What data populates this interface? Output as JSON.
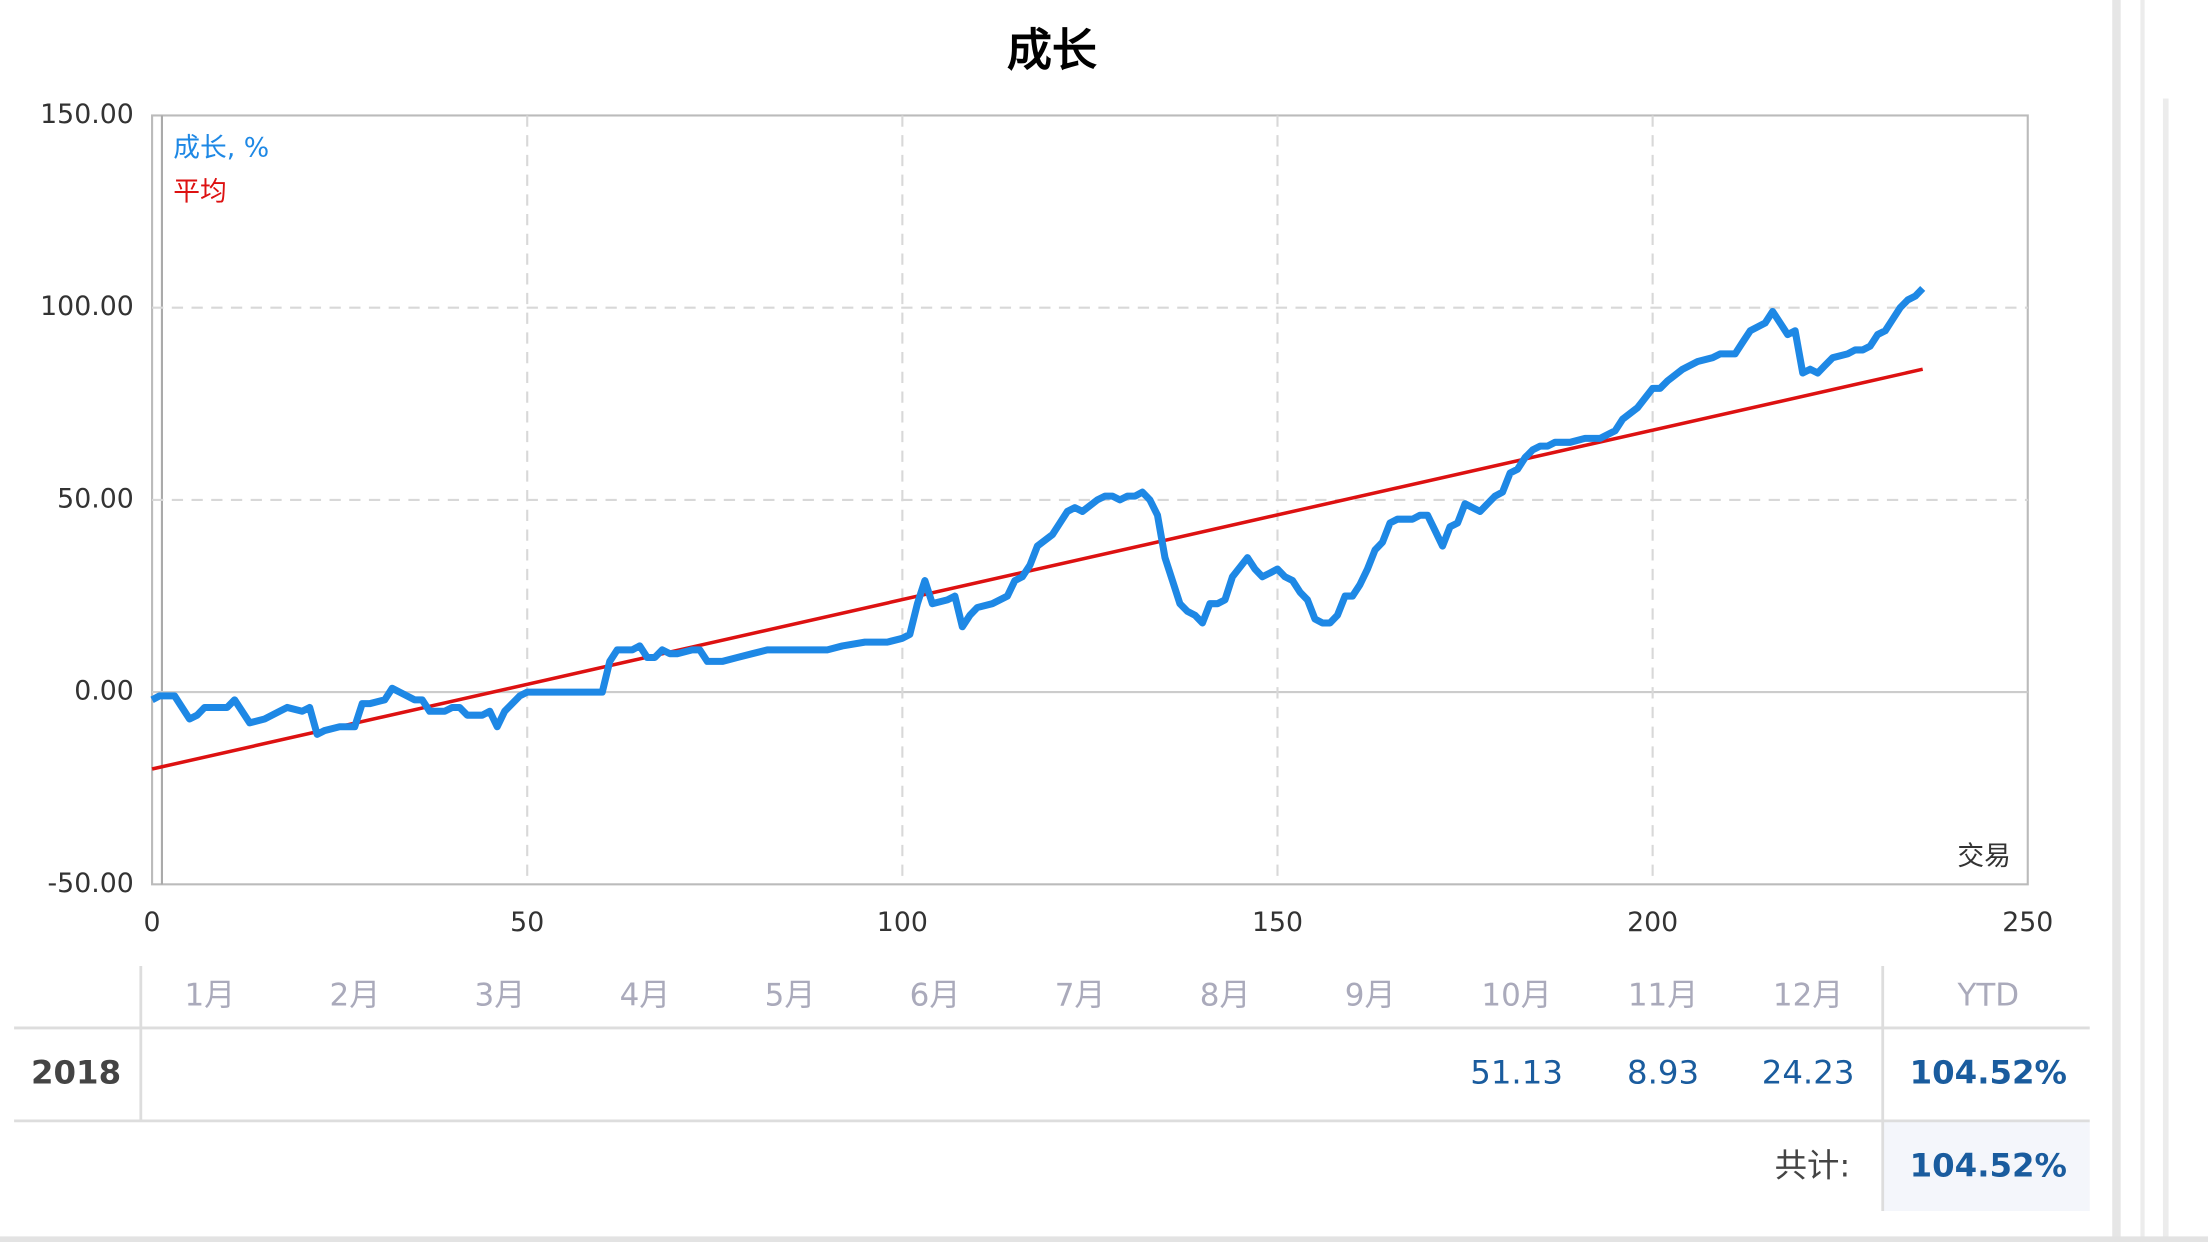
{
  "chart_data": {
    "type": "line",
    "title": "成长",
    "x_label": "交易",
    "xlim": [
      0,
      250
    ],
    "xticks": [
      0,
      50,
      100,
      150,
      200,
      250
    ],
    "ylim": [
      -50,
      150
    ],
    "yticks": [
      {
        "value": -50,
        "label": "-50.00"
      },
      {
        "value": 0,
        "label": "0.00"
      },
      {
        "value": 50,
        "label": "50.00"
      },
      {
        "value": 100,
        "label": "100.00"
      },
      {
        "value": 150,
        "label": "150.00"
      }
    ],
    "grid": true,
    "legend": "upper left",
    "series": [
      {
        "name": "成长, %",
        "color": "#1e88e5",
        "x": [
          0,
          1,
          3,
          5,
          6,
          7,
          9,
          10,
          11,
          13,
          15,
          17,
          18,
          20,
          21,
          22,
          23,
          25,
          26,
          27,
          28,
          29,
          31,
          32,
          33,
          35,
          36,
          37,
          39,
          40,
          41,
          42,
          44,
          45,
          46,
          47,
          49,
          50,
          60,
          61,
          62,
          64,
          65,
          66,
          67,
          68,
          69,
          70,
          72,
          73,
          74,
          76,
          78,
          80,
          82,
          90,
          92,
          95,
          98,
          100,
          101,
          102,
          103,
          104,
          106,
          107,
          108,
          109,
          110,
          112,
          114,
          115,
          116,
          117,
          118,
          120,
          121,
          122,
          123,
          124,
          126,
          127,
          128,
          129,
          130,
          131,
          132,
          133,
          134,
          135,
          136,
          137,
          138,
          139,
          140,
          141,
          142,
          143,
          144,
          146,
          147,
          148,
          149,
          150,
          151,
          152,
          153,
          154,
          155,
          156,
          157,
          158,
          159,
          160,
          161,
          162,
          163,
          164,
          165,
          166,
          168,
          169,
          170,
          171,
          172,
          173,
          174,
          175,
          176,
          177,
          178,
          179,
          180,
          181,
          182,
          183,
          184,
          185,
          186,
          187,
          189,
          191,
          193,
          195,
          196,
          198,
          200,
          201,
          202,
          204,
          206,
          208,
          209,
          211,
          212,
          213,
          215,
          216,
          217,
          218,
          219,
          220,
          221,
          222,
          223,
          224,
          226,
          227,
          228,
          229,
          230,
          231,
          232,
          233,
          234,
          235,
          236
        ],
        "values": [
          -2,
          -1,
          -1,
          -7,
          -6,
          -4,
          -4,
          -4,
          -2,
          -8,
          -7,
          -5,
          -4,
          -5,
          -4,
          -11,
          -10,
          -9,
          -9,
          -9,
          -3,
          -3,
          -2,
          1,
          0,
          -2,
          -2,
          -5,
          -5,
          -4,
          -4,
          -6,
          -6,
          -5,
          -9,
          -5,
          -1,
          0,
          0,
          8,
          11,
          11,
          12,
          9,
          9,
          11,
          10,
          10,
          11,
          11,
          8,
          8,
          9,
          10,
          11,
          11,
          12,
          13,
          13,
          14,
          15,
          23,
          29,
          23,
          24,
          25,
          17,
          20,
          22,
          23,
          25,
          29,
          30,
          33,
          38,
          41,
          44,
          47,
          48,
          47,
          50,
          51,
          51,
          50,
          51,
          51,
          52,
          50,
          46,
          35,
          29,
          23,
          21,
          20,
          18,
          23,
          23,
          24,
          30,
          35,
          32,
          30,
          31,
          32,
          30,
          29,
          26,
          24,
          19,
          18,
          18,
          20,
          25,
          25,
          28,
          32,
          37,
          39,
          44,
          45,
          45,
          46,
          46,
          42,
          38,
          43,
          44,
          49,
          48,
          47,
          49,
          51,
          52,
          57,
          58,
          61,
          63,
          64,
          64,
          65,
          65,
          66,
          66,
          68,
          71,
          74,
          79,
          79,
          81,
          84,
          86,
          87,
          88,
          88,
          91,
          94,
          96,
          99,
          96,
          93,
          94,
          83,
          84,
          83,
          85,
          87,
          88,
          89,
          89,
          90,
          93,
          94,
          97,
          100,
          102,
          103,
          105
        ]
      },
      {
        "name": "平均",
        "color": "#dd1111",
        "x": [
          0,
          236
        ],
        "values": [
          -20,
          84
        ]
      }
    ]
  },
  "table": {
    "columns": [
      "1月",
      "2月",
      "3月",
      "4月",
      "5月",
      "6月",
      "7月",
      "8月",
      "9月",
      "10月",
      "11月",
      "12月"
    ],
    "ytd_header": "YTD",
    "rows": [
      {
        "year": "2018",
        "values": [
          null,
          null,
          null,
          null,
          null,
          null,
          null,
          null,
          null,
          "51.13",
          "8.93",
          "24.23"
        ],
        "ytd": "104.52%"
      }
    ],
    "total": {
      "label": "共计:",
      "value": "104.52%"
    }
  }
}
